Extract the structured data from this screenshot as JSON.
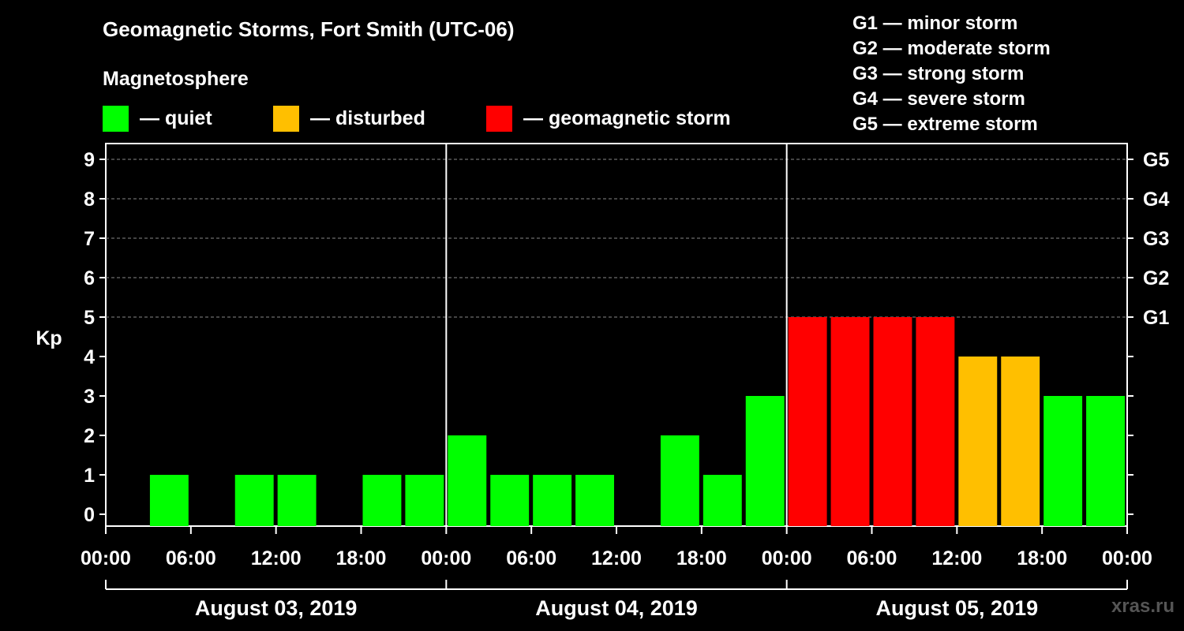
{
  "header": {
    "title": "Geomagnetic Storms, Fort Smith (UTC-06)",
    "subtitle": "Magnetosphere"
  },
  "legend": [
    {
      "label": "— quiet",
      "color": "#00ff00"
    },
    {
      "label": "— disturbed",
      "color": "#ffbf00"
    },
    {
      "label": "— geomagnetic storm",
      "color": "#ff0000"
    }
  ],
  "g_scale": [
    "G1 — minor storm",
    "G2 — moderate storm",
    "G3 — strong storm",
    "G4 — severe storm",
    "G5 — extreme storm"
  ],
  "watermark": "xras.ru",
  "chart_data": {
    "type": "bar",
    "ylabel": "Kp",
    "ylim": [
      0,
      9
    ],
    "yticks": [
      "0",
      "1",
      "2",
      "3",
      "4",
      "5",
      "6",
      "7",
      "8",
      "9"
    ],
    "right_ticks": [
      {
        "kp": 5,
        "label": "G1"
      },
      {
        "kp": 6,
        "label": "G2"
      },
      {
        "kp": 7,
        "label": "G3"
      },
      {
        "kp": 8,
        "label": "G4"
      },
      {
        "kp": 9,
        "label": "G5"
      }
    ],
    "grid": "dashed horizontal at 5–9",
    "xtick_labels": [
      "00:00",
      "06:00",
      "12:00",
      "18:00",
      "00:00",
      "06:00",
      "12:00",
      "18:00",
      "00:00",
      "06:00",
      "12:00",
      "18:00",
      "00:00"
    ],
    "days": [
      "August 03, 2019",
      "August 04, 2019",
      "August 05, 2019"
    ],
    "interval_hours": 3,
    "values": [
      0,
      1,
      0,
      1,
      1,
      0,
      1,
      1,
      2,
      1,
      1,
      1,
      0,
      2,
      1,
      3,
      5,
      5,
      5,
      5,
      4,
      4,
      3,
      3
    ],
    "colors": {
      "quiet": "#00ff00",
      "disturbed": "#ffbf00",
      "storm": "#ff0000"
    }
  }
}
